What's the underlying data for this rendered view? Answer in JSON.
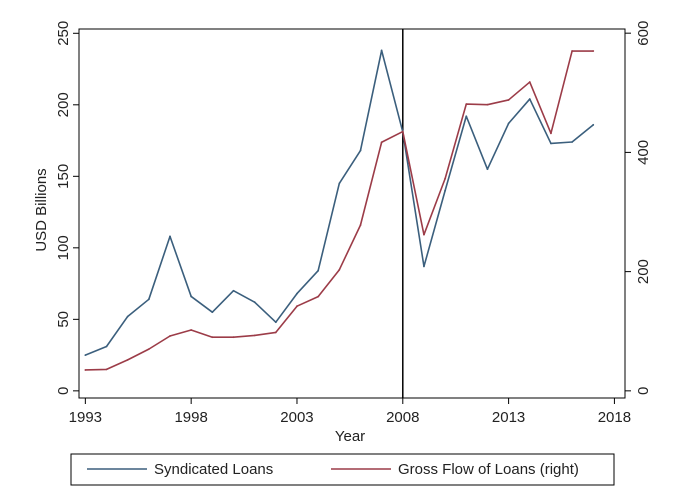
{
  "chart_data": {
    "type": "line",
    "xlabel": "Year",
    "ylabel": "USD Billions",
    "ylabel_right": "",
    "xlim": [
      1992.7,
      2018.5
    ],
    "ylim": [
      -5,
      253
    ],
    "ylim_right": [
      -12,
      607
    ],
    "x_ticks": [
      1993,
      1998,
      2003,
      2008,
      2013,
      2018
    ],
    "y_ticks": [
      0,
      50,
      100,
      150,
      200,
      250
    ],
    "y_ticks_right": [
      0,
      200,
      400,
      600
    ],
    "vertical_line_x": 2008,
    "grid": false,
    "legend_position": "bottom",
    "colors": {
      "syndicated": "#3b5f7d",
      "gross": "#9c3c48",
      "frame": "#000000"
    },
    "series": [
      {
        "name": "Syndicated Loans",
        "axis": "left",
        "x": [
          1993,
          1994,
          1995,
          1996,
          1997,
          1998,
          1999,
          2000,
          2001,
          2002,
          2003,
          2004,
          2005,
          2006,
          2007,
          2008,
          2009,
          2010,
          2011,
          2012,
          2013,
          2014,
          2015,
          2016,
          2017
        ],
        "values": [
          25,
          31,
          52,
          64,
          108,
          66,
          55,
          70,
          62,
          48,
          68,
          84,
          145,
          168,
          238,
          181,
          87,
          140,
          192,
          155,
          187,
          204,
          173,
          174,
          186
        ]
      },
      {
        "name": "Gross Flow of Loans (right)",
        "axis": "right",
        "x": [
          1993,
          1994,
          1995,
          1996,
          1997,
          1998,
          1999,
          2000,
          2001,
          2002,
          2003,
          2004,
          2005,
          2006,
          2007,
          2008,
          2009,
          2010,
          2011,
          2012,
          2013,
          2014,
          2015,
          2016,
          2017
        ],
        "values": [
          35,
          36,
          52,
          70,
          92,
          102,
          90,
          90,
          93,
          98,
          142,
          158,
          203,
          278,
          417,
          435,
          262,
          356,
          481,
          480,
          488,
          518,
          432,
          570,
          570
        ]
      }
    ]
  }
}
